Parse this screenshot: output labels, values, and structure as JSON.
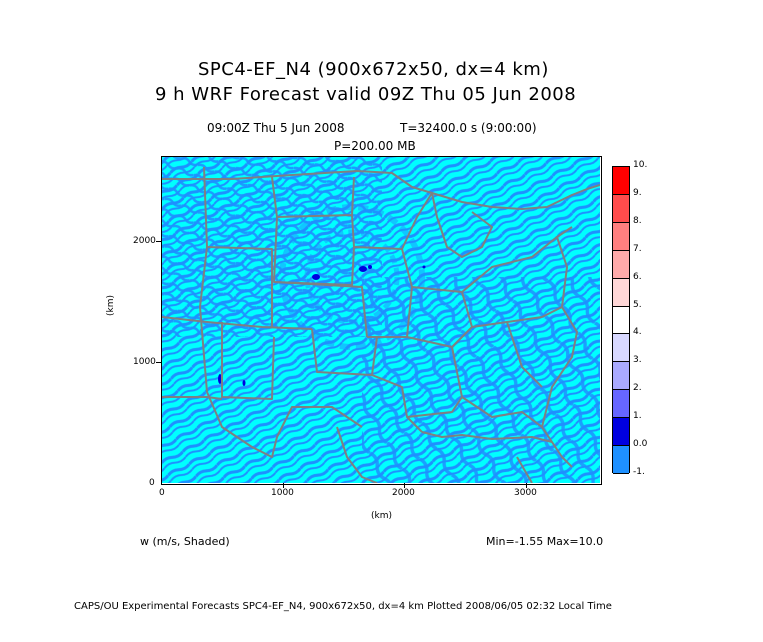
{
  "title_line1": "SPC4-EF_N4 (900x672x50, dx=4 km)",
  "title_line2": "9 h  WRF Forecast valid 09Z Thu 05 Jun 2008",
  "subtitle_time": "09:00Z Thu  5 Jun 2008",
  "subtitle_t": "T=32400.0 s (9:00:00)",
  "subtitle_p": "P=200.00 MB",
  "x_axis": {
    "label": "(km)",
    "ticks": [
      "0",
      "1000",
      "2000",
      "3000"
    ]
  },
  "y_axis": {
    "label": "(km)",
    "ticks": [
      "0",
      "1000",
      "2000"
    ]
  },
  "variable_label": "w (m/s, Shaded)",
  "minmax": "Min=-1.55 Max=10.0",
  "footer": "CAPS/OU Experimental Forecasts  SPC4-EF_N4, 900x672x50, dx=4 km  Plotted 2008/06/05 02:32 Local Time",
  "colorbar": {
    "labels": [
      "10.",
      "9.",
      "8.",
      "7.",
      "6.",
      "5.",
      "4.",
      "3.",
      "2.",
      "1.",
      "0.0",
      "-1."
    ],
    "colors": [
      "#ff0000",
      "#ff4c4c",
      "#ff7f7f",
      "#ffaaaa",
      "#ffd7d7",
      "#ffffff",
      "#d8d8ff",
      "#aaaaff",
      "#6666ff",
      "#0000e0",
      "#1e90ff",
      "#00ffff"
    ]
  },
  "colors": {
    "field_updraft_light": "#00ffff",
    "field_background": "#1e90ff",
    "field_strong": "#0000e0",
    "boundaries": "#808080"
  }
}
